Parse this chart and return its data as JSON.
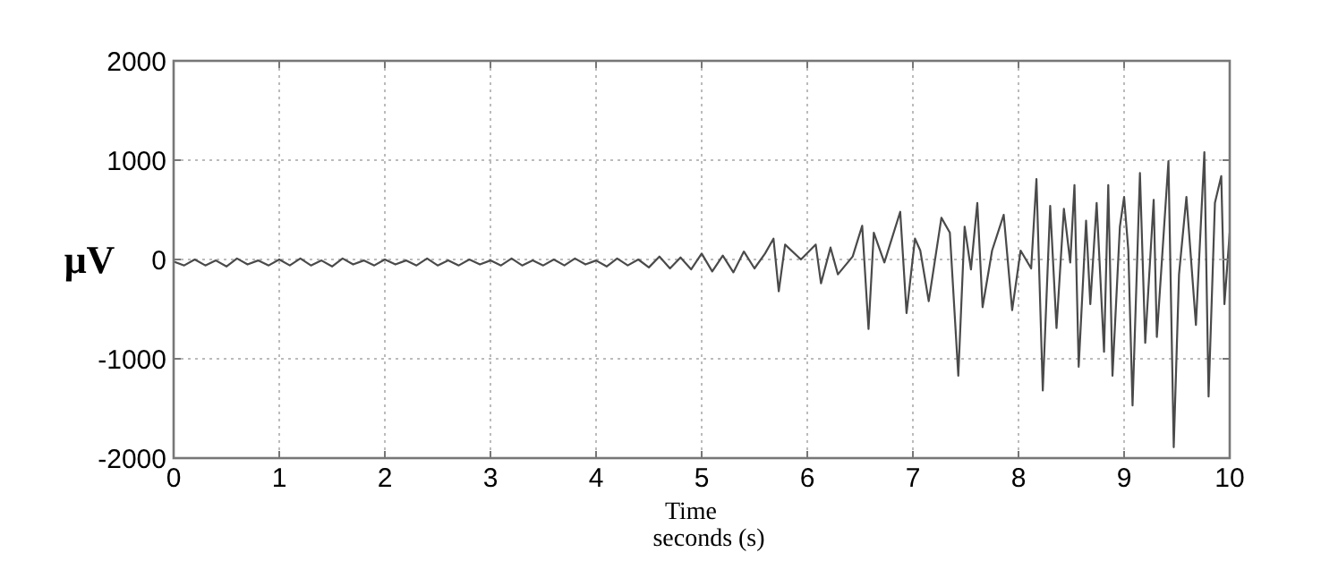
{
  "chart_data": {
    "type": "line",
    "xlabel": "Time\nseconds (s)",
    "ylabel": "μV",
    "xlim": [
      0,
      10
    ],
    "ylim": [
      -2000,
      2000
    ],
    "xticks": [
      0,
      1,
      2,
      3,
      4,
      5,
      6,
      7,
      8,
      9,
      10
    ],
    "yticks": [
      -2000,
      -1000,
      0,
      1000,
      2000
    ],
    "grid": true,
    "marker": "none",
    "line_style": "solid",
    "series": [
      {
        "color": "#4a4a4a",
        "x": [
          0,
          0.1,
          0.2,
          0.3,
          0.4,
          0.5,
          0.6,
          0.7,
          0.8,
          0.9,
          1,
          1.1,
          1.2,
          1.3,
          1.4,
          1.5,
          1.6,
          1.7,
          1.8,
          1.9,
          2,
          2.1,
          2.2,
          2.3,
          2.4,
          2.5,
          2.6,
          2.7,
          2.8,
          2.9,
          3,
          3.1,
          3.2,
          3.3,
          3.4,
          3.5,
          3.6,
          3.7,
          3.8,
          3.9,
          4,
          4.1,
          4.2,
          4.3,
          4.4,
          4.5,
          4.6,
          4.7,
          4.8,
          4.9,
          5,
          5.1,
          5.2,
          5.3,
          5.4,
          5.5,
          5.6,
          5.68,
          5.73,
          5.79,
          5.94,
          6.08,
          6.13,
          6.22,
          6.29,
          6.43,
          6.52,
          6.58,
          6.63,
          6.73,
          6.88,
          6.94,
          7.02,
          7.07,
          7.15,
          7.27,
          7.35,
          7.43,
          7.49,
          7.55,
          7.61,
          7.66,
          7.75,
          7.86,
          7.94,
          8.02,
          8.12,
          8.17,
          8.23,
          8.3,
          8.36,
          8.43,
          8.49,
          8.53,
          8.57,
          8.64,
          8.68,
          8.74,
          8.81,
          8.85,
          8.89,
          8.96,
          9,
          9.04,
          9.08,
          9.15,
          9.2,
          9.28,
          9.31,
          9.42,
          9.47,
          9.52,
          9.59,
          9.68,
          9.76,
          9.8,
          9.86,
          9.92,
          9.95,
          10
        ],
        "values": [
          -20,
          -60,
          0,
          -60,
          -10,
          -70,
          10,
          -50,
          -10,
          -60,
          0,
          -60,
          10,
          -60,
          -10,
          -70,
          10,
          -50,
          -10,
          -60,
          0,
          -50,
          -10,
          -60,
          10,
          -60,
          -10,
          -60,
          0,
          -50,
          -10,
          -60,
          10,
          -60,
          -10,
          -60,
          0,
          -60,
          10,
          -50,
          -10,
          -70,
          10,
          -60,
          0,
          -80,
          30,
          -90,
          20,
          -100,
          60,
          -120,
          40,
          -130,
          80,
          -90,
          60,
          210,
          -320,
          150,
          0,
          150,
          -240,
          120,
          -150,
          30,
          340,
          -700,
          270,
          -30,
          480,
          -540,
          210,
          90,
          -420,
          420,
          270,
          -1170,
          330,
          -100,
          570,
          -480,
          90,
          450,
          -510,
          90,
          -90,
          810,
          -1320,
          540,
          -690,
          510,
          -30,
          750,
          -1080,
          390,
          -450,
          570,
          -930,
          750,
          -1170,
          330,
          630,
          90,
          -1470,
          870,
          -840,
          600,
          -780,
          990,
          -1890,
          -150,
          630,
          -660,
          1080,
          -1380,
          570,
          840,
          -450,
          270
        ]
      }
    ]
  }
}
